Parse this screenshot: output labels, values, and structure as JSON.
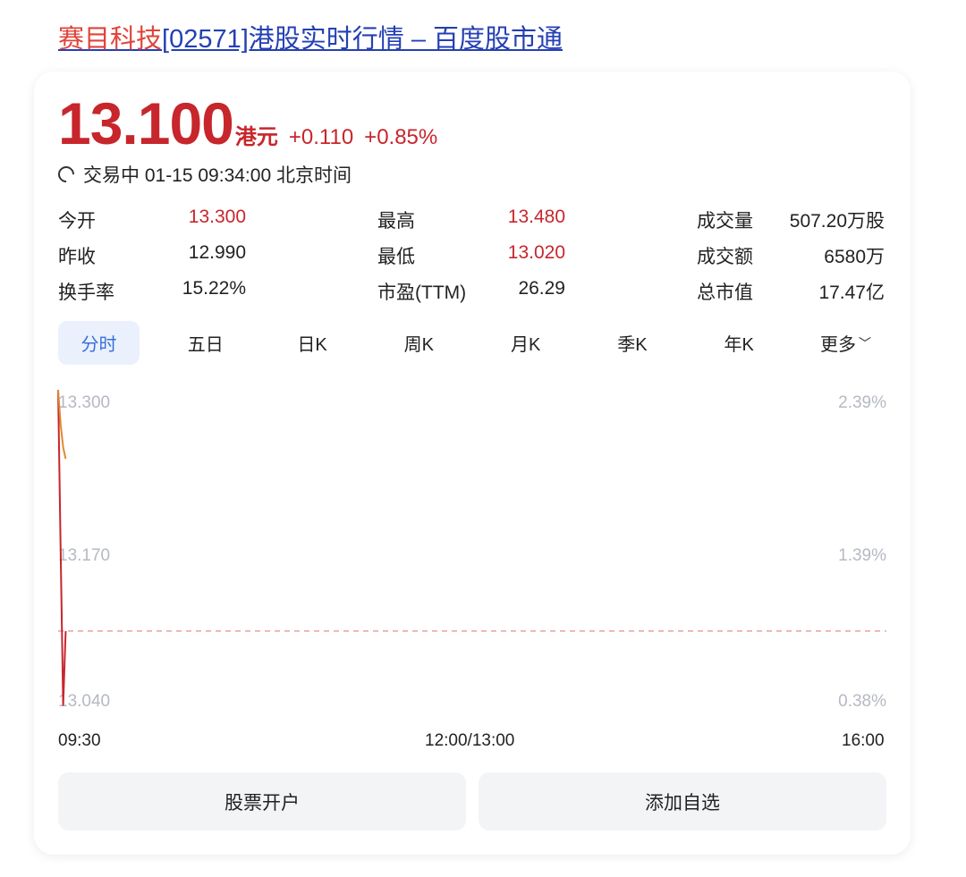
{
  "title": {
    "highlight": "赛目科技",
    "rest": "[02571]港股实时行情 – 百度股市通"
  },
  "quote": {
    "price": "13.100",
    "unit": "港元",
    "change": "+0.110",
    "change_pct": "+0.85%",
    "status": "交易中 01-15 09:34:00 北京时间",
    "up_color": "#c7262c"
  },
  "stats": [
    [
      {
        "label": "今开",
        "value": "13.300",
        "red": true
      },
      {
        "label": "最高",
        "value": "13.480",
        "red": true
      },
      {
        "label": "成交量",
        "value": "507.20万股"
      }
    ],
    [
      {
        "label": "昨收",
        "value": "12.990"
      },
      {
        "label": "最低",
        "value": "13.020",
        "red": true
      },
      {
        "label": "成交额",
        "value": "6580万"
      }
    ],
    [
      {
        "label": "换手率",
        "value": "15.22%"
      },
      {
        "label": "市盈(TTM)",
        "value": "26.29"
      },
      {
        "label": "总市值",
        "value": "17.47亿"
      }
    ]
  ],
  "tabs": [
    {
      "label": "分时",
      "active": true
    },
    {
      "label": "五日"
    },
    {
      "label": "日K"
    },
    {
      "label": "周K"
    },
    {
      "label": "月K"
    },
    {
      "label": "季K"
    },
    {
      "label": "年K"
    },
    {
      "label": "更多"
    }
  ],
  "chart_data": {
    "type": "line",
    "x_ticks": [
      "09:30",
      "12:00/13:00",
      "16:00"
    ],
    "y_ticks": [
      "13.300",
      "13.170",
      "13.040"
    ],
    "y_pct_ticks": [
      "2.39%",
      "1.39%",
      "0.38%"
    ],
    "ylim": [
      13.04,
      13.3
    ],
    "reference_price": 13.1,
    "minutes_total": 330,
    "series": [
      {
        "color": "#c7262c",
        "x": [
          0,
          1,
          2,
          3
        ],
        "values": [
          13.31,
          13.17,
          13.035,
          13.1
        ]
      },
      {
        "color": "#e08a2e",
        "x": [
          0,
          1,
          2,
          3
        ],
        "values": [
          13.31,
          13.28,
          13.26,
          13.25
        ]
      }
    ]
  },
  "buttons": {
    "open_account": "股票开户",
    "add_watch": "添加自选"
  }
}
